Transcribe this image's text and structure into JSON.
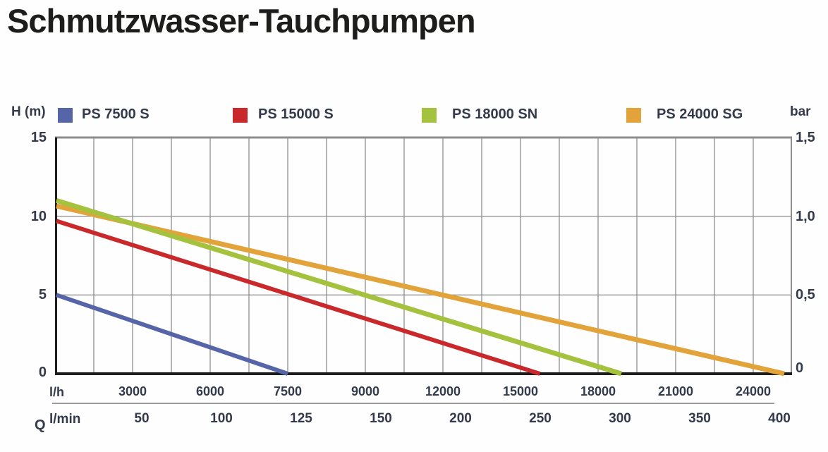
{
  "title": "Schmutzwasser-Tauchpumpen",
  "legend": {
    "left_axis_label": "H (m)",
    "right_axis_label": "bar",
    "items": [
      {
        "label": "PS 7500 S",
        "color": "#5565a8"
      },
      {
        "label": "PS 15000 S",
        "color": "#c9292b"
      },
      {
        "label": "PS 18000 SN",
        "color": "#a5c23f"
      },
      {
        "label": "PS 24000 SG",
        "color": "#e2a43a"
      }
    ]
  },
  "bottom_axis": {
    "row1_label": "l/h",
    "row2_label": "l/min",
    "row2_prefix": "Q"
  },
  "chart_data": {
    "type": "line",
    "title": "Schmutzwasser-Tauchpumpen",
    "x_axis": {
      "label_row1": "l/h",
      "ticks_lh": [
        3000,
        6000,
        7500,
        9000,
        12000,
        15000,
        18000,
        21000,
        24000
      ],
      "label_row2": "l/min",
      "ticks_lmin": [
        50,
        100,
        125,
        150,
        200,
        250,
        300,
        350,
        400
      ],
      "tick_spacing": "equal visual spacing per labelled tick (non-linear value scale)"
    },
    "y_axis_left": {
      "label": "H (m)",
      "ticks": [
        "15",
        "10",
        "5",
        "0"
      ],
      "range": [
        0,
        15
      ]
    },
    "y_axis_right": {
      "label": "bar",
      "ticks": [
        "1,5",
        "1,0",
        "0,5",
        "0"
      ],
      "range": [
        0,
        1.5
      ]
    },
    "grid": {
      "vertical_minor_per_tick": 2,
      "horizontal_at_H": [
        5,
        10
      ]
    },
    "legend_position": "top",
    "series": [
      {
        "name": "PS 7500 S",
        "color": "#5565a8",
        "width": 6,
        "points": [
          {
            "q_lh": 0,
            "h_m": 5.0
          },
          {
            "q_lh": 7500,
            "h_m": 0
          }
        ]
      },
      {
        "name": "PS 15000 S",
        "color": "#c9292b",
        "width": 6,
        "points": [
          {
            "q_lh": 0,
            "h_m": 9.7
          },
          {
            "q_lh": 15750,
            "h_m": 0
          }
        ]
      },
      {
        "name": "PS 18000 SN",
        "color": "#a5c23f",
        "width": 7,
        "points": [
          {
            "q_lh": 0,
            "h_m": 11.0
          },
          {
            "q_lh": 18900,
            "h_m": 0
          }
        ]
      },
      {
        "name": "PS 24000 SG",
        "color": "#e2a43a",
        "width": 7,
        "points": [
          {
            "q_lh": 0,
            "h_m": 10.65
          },
          {
            "q_lh": 25200,
            "h_m": 0
          }
        ]
      }
    ]
  }
}
